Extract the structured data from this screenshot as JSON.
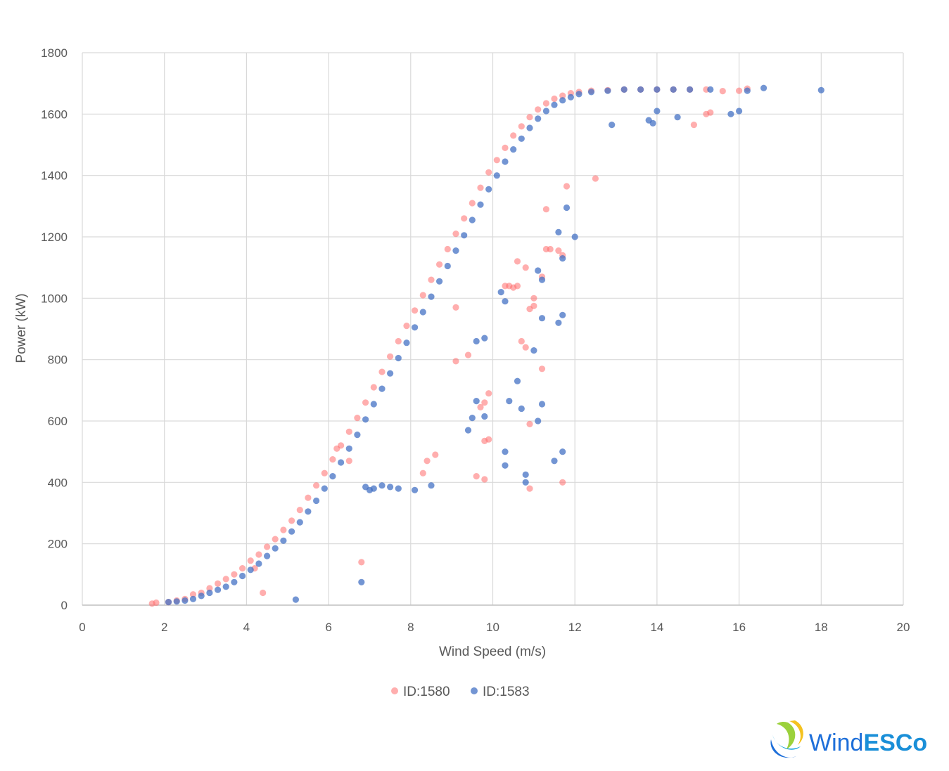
{
  "chart_data": {
    "type": "scatter",
    "title": "",
    "xlabel": "Wind Speed (m/s)",
    "ylabel": "Power (kW)",
    "xlim": [
      0,
      20
    ],
    "ylim": [
      0,
      1800
    ],
    "xticks": [
      0,
      2,
      4,
      6,
      8,
      10,
      12,
      14,
      16,
      18,
      20
    ],
    "yticks": [
      0,
      200,
      400,
      600,
      800,
      1000,
      1200,
      1400,
      1600,
      1800
    ],
    "grid": true,
    "legend_position": "bottom",
    "series": [
      {
        "name": "ID:1580",
        "color": "#ff6b6b",
        "points": [
          [
            1.7,
            5
          ],
          [
            1.8,
            8
          ],
          [
            2.1,
            10
          ],
          [
            2.3,
            15
          ],
          [
            2.5,
            20
          ],
          [
            2.7,
            35
          ],
          [
            2.9,
            40
          ],
          [
            3.1,
            55
          ],
          [
            3.3,
            70
          ],
          [
            3.5,
            85
          ],
          [
            3.7,
            100
          ],
          [
            3.9,
            120
          ],
          [
            4.1,
            145
          ],
          [
            4.3,
            165
          ],
          [
            4.5,
            190
          ],
          [
            4.7,
            215
          ],
          [
            4.9,
            245
          ],
          [
            5.1,
            275
          ],
          [
            5.3,
            310
          ],
          [
            5.5,
            350
          ],
          [
            5.7,
            390
          ],
          [
            5.9,
            430
          ],
          [
            6.1,
            475
          ],
          [
            6.3,
            520
          ],
          [
            6.5,
            565
          ],
          [
            6.7,
            610
          ],
          [
            6.9,
            660
          ],
          [
            7.1,
            710
          ],
          [
            7.3,
            760
          ],
          [
            7.5,
            810
          ],
          [
            7.7,
            860
          ],
          [
            7.9,
            910
          ],
          [
            8.1,
            960
          ],
          [
            8.3,
            1010
          ],
          [
            8.5,
            1060
          ],
          [
            8.7,
            1110
          ],
          [
            8.9,
            1160
          ],
          [
            9.1,
            1210
          ],
          [
            9.3,
            1260
          ],
          [
            9.5,
            1310
          ],
          [
            9.7,
            1360
          ],
          [
            9.9,
            1410
          ],
          [
            10.1,
            1450
          ],
          [
            10.3,
            1490
          ],
          [
            10.5,
            1530
          ],
          [
            10.7,
            1560
          ],
          [
            10.9,
            1590
          ],
          [
            11.1,
            1615
          ],
          [
            11.3,
            1635
          ],
          [
            11.5,
            1650
          ],
          [
            11.7,
            1660
          ],
          [
            11.9,
            1668
          ],
          [
            12.1,
            1672
          ],
          [
            12.4,
            1676
          ],
          [
            12.8,
            1678
          ],
          [
            13.2,
            1680
          ],
          [
            13.6,
            1680
          ],
          [
            14.0,
            1680
          ],
          [
            14.4,
            1680
          ],
          [
            14.8,
            1680
          ],
          [
            15.2,
            1680
          ],
          [
            15.6,
            1675
          ],
          [
            16.0,
            1676
          ],
          [
            16.2,
            1683
          ],
          [
            4.4,
            40
          ],
          [
            4.2,
            120
          ],
          [
            6.5,
            470
          ],
          [
            6.2,
            510
          ],
          [
            6.8,
            140
          ],
          [
            8.6,
            490
          ],
          [
            8.4,
            470
          ],
          [
            8.3,
            430
          ],
          [
            9.1,
            795
          ],
          [
            9.4,
            815
          ],
          [
            9.6,
            420
          ],
          [
            9.8,
            410
          ],
          [
            9.9,
            690
          ],
          [
            9.8,
            660
          ],
          [
            9.7,
            645
          ],
          [
            9.8,
            535
          ],
          [
            9.9,
            540
          ],
          [
            10.3,
            1040
          ],
          [
            10.5,
            1035
          ],
          [
            10.6,
            1040
          ],
          [
            10.7,
            860
          ],
          [
            10.8,
            840
          ],
          [
            10.6,
            1120
          ],
          [
            10.8,
            1100
          ],
          [
            10.9,
            965
          ],
          [
            11.0,
            975
          ],
          [
            10.9,
            590
          ],
          [
            10.9,
            380
          ],
          [
            11.2,
            1070
          ],
          [
            11.3,
            1160
          ],
          [
            11.4,
            1160
          ],
          [
            11.6,
            1155
          ],
          [
            11.7,
            1140
          ],
          [
            11.2,
            770
          ],
          [
            11.7,
            400
          ],
          [
            11.8,
            1365
          ],
          [
            12.5,
            1390
          ],
          [
            14.9,
            1565
          ],
          [
            15.2,
            1600
          ],
          [
            15.3,
            1605
          ],
          [
            9.1,
            970
          ],
          [
            10.4,
            1040
          ],
          [
            11.0,
            1000
          ],
          [
            11.3,
            1290
          ]
        ]
      },
      {
        "name": "ID:1583",
        "color": "#4472c4",
        "points": [
          [
            2.1,
            10
          ],
          [
            2.3,
            12
          ],
          [
            2.5,
            15
          ],
          [
            2.7,
            20
          ],
          [
            2.9,
            30
          ],
          [
            3.1,
            40
          ],
          [
            3.3,
            50
          ],
          [
            3.5,
            60
          ],
          [
            3.7,
            75
          ],
          [
            3.9,
            95
          ],
          [
            4.1,
            115
          ],
          [
            4.3,
            135
          ],
          [
            4.5,
            160
          ],
          [
            4.7,
            185
          ],
          [
            4.9,
            210
          ],
          [
            5.1,
            240
          ],
          [
            5.3,
            270
          ],
          [
            5.5,
            305
          ],
          [
            5.7,
            340
          ],
          [
            5.9,
            380
          ],
          [
            6.1,
            420
          ],
          [
            6.3,
            465
          ],
          [
            6.5,
            510
          ],
          [
            6.7,
            555
          ],
          [
            6.9,
            605
          ],
          [
            7.1,
            655
          ],
          [
            7.3,
            705
          ],
          [
            7.5,
            755
          ],
          [
            7.7,
            805
          ],
          [
            7.9,
            855
          ],
          [
            8.1,
            905
          ],
          [
            8.3,
            955
          ],
          [
            8.5,
            1005
          ],
          [
            8.7,
            1055
          ],
          [
            8.9,
            1105
          ],
          [
            9.1,
            1155
          ],
          [
            9.3,
            1205
          ],
          [
            9.5,
            1255
          ],
          [
            9.7,
            1305
          ],
          [
            9.9,
            1355
          ],
          [
            10.1,
            1400
          ],
          [
            10.3,
            1445
          ],
          [
            10.5,
            1485
          ],
          [
            10.7,
            1520
          ],
          [
            10.9,
            1555
          ],
          [
            11.1,
            1585
          ],
          [
            11.3,
            1610
          ],
          [
            11.5,
            1630
          ],
          [
            11.7,
            1645
          ],
          [
            11.9,
            1655
          ],
          [
            12.1,
            1665
          ],
          [
            12.4,
            1672
          ],
          [
            12.8,
            1676
          ],
          [
            13.2,
            1680
          ],
          [
            13.6,
            1680
          ],
          [
            14.0,
            1680
          ],
          [
            14.4,
            1680
          ],
          [
            14.8,
            1680
          ],
          [
            15.3,
            1680
          ],
          [
            16.2,
            1676
          ],
          [
            16.6,
            1685
          ],
          [
            18.0,
            1678
          ],
          [
            5.2,
            18
          ],
          [
            6.8,
            75
          ],
          [
            7.0,
            375
          ],
          [
            7.1,
            380
          ],
          [
            7.3,
            390
          ],
          [
            7.5,
            385
          ],
          [
            7.7,
            380
          ],
          [
            6.9,
            385
          ],
          [
            8.5,
            390
          ],
          [
            8.1,
            375
          ],
          [
            9.4,
            570
          ],
          [
            9.5,
            610
          ],
          [
            9.6,
            665
          ],
          [
            9.8,
            615
          ],
          [
            9.8,
            870
          ],
          [
            9.6,
            860
          ],
          [
            10.3,
            500
          ],
          [
            10.3,
            455
          ],
          [
            10.4,
            665
          ],
          [
            10.6,
            730
          ],
          [
            10.7,
            640
          ],
          [
            10.8,
            400
          ],
          [
            10.8,
            425
          ],
          [
            11.0,
            830
          ],
          [
            11.1,
            600
          ],
          [
            11.2,
            655
          ],
          [
            11.5,
            470
          ],
          [
            11.6,
            920
          ],
          [
            11.7,
            945
          ],
          [
            11.7,
            500
          ],
          [
            11.6,
            1215
          ],
          [
            11.7,
            1130
          ],
          [
            11.8,
            1295
          ],
          [
            12.0,
            1200
          ],
          [
            11.2,
            935
          ],
          [
            11.2,
            1060
          ],
          [
            11.1,
            1090
          ],
          [
            10.3,
            990
          ],
          [
            10.2,
            1020
          ],
          [
            14.0,
            1610
          ],
          [
            14.5,
            1590
          ],
          [
            15.8,
            1600
          ],
          [
            16.0,
            1610
          ],
          [
            13.8,
            1580
          ],
          [
            13.9,
            1570
          ],
          [
            12.9,
            1565
          ]
        ]
      }
    ]
  },
  "brand": {
    "name_part1": "Wind",
    "name_part2": "ESCo"
  }
}
